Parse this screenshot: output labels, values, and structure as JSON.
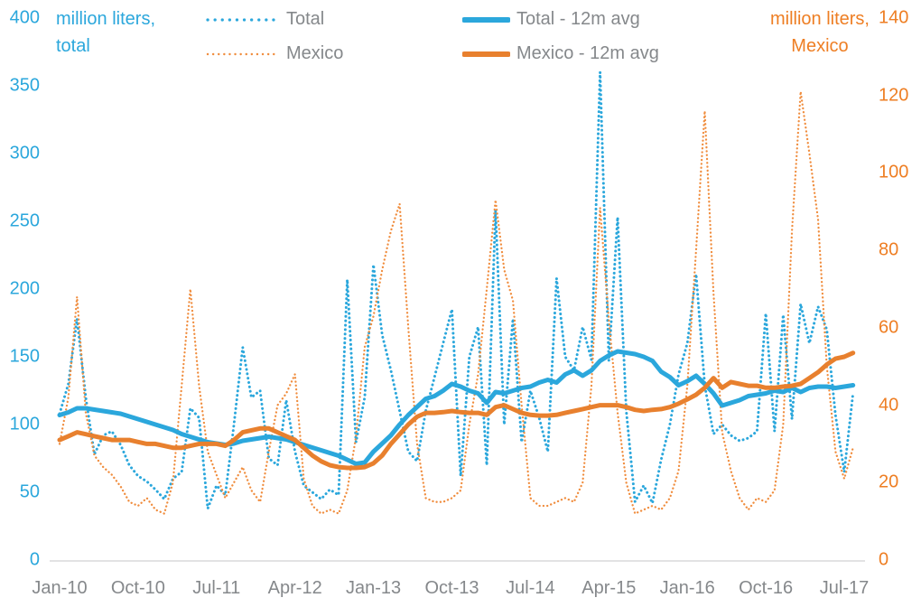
{
  "header": {
    "left_axis_title_line1": "million liters,",
    "left_axis_title_line2": "total",
    "right_axis_title_line1": "million liters,",
    "right_axis_title_line2": "Mexico"
  },
  "legend": {
    "items": [
      {
        "label": "Total",
        "color": "#2ba7dc",
        "style": "dotted",
        "column": 1
      },
      {
        "label": "Mexico",
        "color": "#f08d3e",
        "style": "dotted",
        "column": 1
      },
      {
        "label": "Total - 12m avg",
        "color": "#2ba7dc",
        "style": "solid",
        "column": 2
      },
      {
        "label": "Mexico - 12m avg",
        "color": "#e8802e",
        "style": "solid",
        "column": 2
      }
    ]
  },
  "colors": {
    "total_blue": "#2ba7dc",
    "mexico_orange": "#e8802e",
    "mexico_dotted_orange": "#f08d3e",
    "label_gray": "#85888b",
    "axis_line": "#d8d9da"
  },
  "chart_data": {
    "type": "line",
    "title": "",
    "grid": "off",
    "legend_position": "top",
    "left_axis": {
      "title": "million liters, total",
      "range": [
        0,
        400
      ],
      "ticks": [
        400,
        350,
        300,
        250,
        200,
        150,
        100,
        50,
        0
      ]
    },
    "right_axis": {
      "title": "million liters, Mexico",
      "range": [
        0,
        140
      ],
      "ticks": [
        140,
        120,
        100,
        80,
        60,
        40,
        20,
        0
      ]
    },
    "x_ticks": [
      {
        "label": "Jan-10",
        "month": 0
      },
      {
        "label": "Oct-10",
        "month": 9
      },
      {
        "label": "Jul-11",
        "month": 18
      },
      {
        "label": "Apr-12",
        "month": 27
      },
      {
        "label": "Jan-13",
        "month": 36
      },
      {
        "label": "Oct-13",
        "month": 45
      },
      {
        "label": "Jul-14",
        "month": 54
      },
      {
        "label": "Apr-15",
        "month": 63
      },
      {
        "label": "Jan-16",
        "month": 72
      },
      {
        "label": "Oct-16",
        "month": 81
      },
      {
        "label": "Jul-17",
        "month": 90
      }
    ],
    "months": [
      "Jan-10",
      "Feb-10",
      "Mar-10",
      "Apr-10",
      "May-10",
      "Jun-10",
      "Jul-10",
      "Aug-10",
      "Sep-10",
      "Oct-10",
      "Nov-10",
      "Dec-10",
      "Jan-11",
      "Feb-11",
      "Mar-11",
      "Apr-11",
      "May-11",
      "Jun-11",
      "Jul-11",
      "Aug-11",
      "Sep-11",
      "Oct-11",
      "Nov-11",
      "Dec-11",
      "Jan-12",
      "Feb-12",
      "Mar-12",
      "Apr-12",
      "May-12",
      "Jun-12",
      "Jul-12",
      "Aug-12",
      "Sep-12",
      "Oct-12",
      "Nov-12",
      "Dec-12",
      "Jan-13",
      "Feb-13",
      "Mar-13",
      "Apr-13",
      "May-13",
      "Jun-13",
      "Jul-13",
      "Aug-13",
      "Sep-13",
      "Oct-13",
      "Nov-13",
      "Dec-13",
      "Jan-14",
      "Feb-14",
      "Mar-14",
      "Apr-14",
      "May-14",
      "Jun-14",
      "Jul-14",
      "Aug-14",
      "Sep-14",
      "Oct-14",
      "Nov-14",
      "Dec-14",
      "Jan-15",
      "Feb-15",
      "Mar-15",
      "Apr-15",
      "May-15",
      "Jun-15",
      "Jul-15",
      "Aug-15",
      "Sep-15",
      "Oct-15",
      "Nov-15",
      "Dec-15",
      "Jan-16",
      "Feb-16",
      "Mar-16",
      "Apr-16",
      "May-16",
      "Jun-16",
      "Jul-16",
      "Aug-16",
      "Sep-16",
      "Oct-16",
      "Nov-16",
      "Dec-16",
      "Jan-17",
      "Feb-17",
      "Mar-17",
      "Apr-17",
      "May-17",
      "Jun-17",
      "Jul-17",
      "Aug-17"
    ],
    "series": [
      {
        "name": "Total",
        "axis": "left",
        "style": "dotted",
        "color": "#2ba7dc",
        "values": [
          108,
          130,
          178,
          120,
          78,
          92,
          95,
          85,
          70,
          62,
          58,
          52,
          45,
          60,
          65,
          112,
          105,
          38,
          55,
          48,
          100,
          157,
          120,
          125,
          75,
          70,
          118,
          80,
          55,
          50,
          45,
          52,
          48,
          207,
          87,
          120,
          218,
          166,
          140,
          110,
          80,
          73,
          110,
          135,
          160,
          185,
          62,
          150,
          172,
          70,
          258,
          100,
          178,
          87,
          125,
          105,
          80,
          208,
          150,
          140,
          172,
          148,
          360,
          147,
          253,
          110,
          43,
          55,
          42,
          74,
          100,
          137,
          160,
          211,
          129,
          93,
          100,
          92,
          88,
          90,
          95,
          182,
          95,
          181,
          104,
          189,
          160,
          187,
          170,
          107,
          65,
          123
        ]
      },
      {
        "name": "Mexico",
        "axis": "right",
        "style": "dotted",
        "color": "#f08d3e",
        "values": [
          30,
          42,
          68,
          38,
          27,
          24,
          22,
          19,
          15,
          14,
          16,
          13,
          12,
          20,
          45,
          70,
          45,
          28,
          22,
          16,
          20,
          24,
          18,
          15,
          28,
          40,
          43,
          48,
          21,
          14,
          12,
          13,
          12,
          18,
          32,
          55,
          63,
          75,
          85,
          92,
          60,
          30,
          16,
          15,
          15,
          16,
          18,
          35,
          48,
          70,
          93,
          75,
          67,
          40,
          16,
          14,
          14,
          15,
          16,
          15,
          20,
          45,
          91,
          62,
          38,
          20,
          12,
          13,
          14,
          13,
          16,
          23,
          45,
          80,
          116,
          69,
          33,
          23,
          16,
          13,
          16,
          15,
          18,
          35,
          85,
          121,
          105,
          88,
          50,
          28,
          21,
          29
        ]
      },
      {
        "name": "Total - 12m avg",
        "axis": "left",
        "style": "solid",
        "color": "#2ba7dc",
        "values": [
          107,
          109,
          112,
          112,
          111,
          110,
          109,
          108,
          106,
          104,
          102,
          100,
          98,
          96,
          93,
          91,
          89,
          87,
          86,
          85,
          86,
          88,
          89,
          90,
          91,
          90,
          89,
          87,
          85,
          83,
          81,
          79,
          77,
          74,
          71,
          72,
          80,
          86,
          92,
          100,
          107,
          113,
          119,
          121,
          125,
          130,
          128,
          125,
          123,
          116,
          124,
          123,
          125,
          127,
          128,
          131,
          133,
          131,
          137,
          140,
          136,
          140,
          147,
          151,
          154,
          153,
          152,
          150,
          147,
          139,
          135,
          129,
          132,
          136,
          130,
          123,
          114,
          116,
          118,
          121,
          122,
          123,
          125,
          124,
          127,
          124,
          127,
          128,
          128,
          127,
          128,
          129
        ]
      },
      {
        "name": "Mexico - 12m avg",
        "axis": "right",
        "style": "solid",
        "color": "#e8802e",
        "values": [
          31,
          32,
          33,
          32.5,
          32,
          31.5,
          31,
          31,
          31,
          30.5,
          30,
          30,
          29.5,
          29,
          29,
          29.5,
          30,
          30,
          30,
          29.5,
          31,
          33,
          33.5,
          34,
          34,
          33,
          32,
          31,
          29,
          27,
          25.5,
          24.5,
          24,
          23.8,
          23.8,
          24,
          25,
          27,
          30,
          32.5,
          35,
          37,
          38,
          38,
          38.2,
          38.5,
          38.2,
          38,
          38,
          37.5,
          39.5,
          40,
          39,
          38,
          37.5,
          37.3,
          37.3,
          37.5,
          38,
          38.5,
          39,
          39.5,
          40,
          40,
          40,
          39.5,
          38.8,
          38.5,
          38.8,
          39,
          39.5,
          40.4,
          41.5,
          42.7,
          44.5,
          47,
          44.5,
          46,
          45.5,
          45,
          45,
          44.5,
          44.5,
          44.8,
          45,
          45.5,
          47,
          48.5,
          50.5,
          52,
          52.5,
          53.5
        ]
      }
    ]
  }
}
